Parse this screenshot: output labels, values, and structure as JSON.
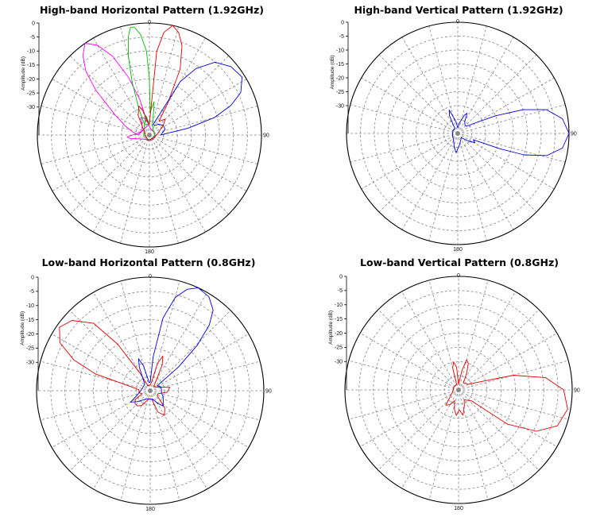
{
  "chart_data": [
    {
      "type": "polar",
      "title": "High-band Horizontal Pattern (1.92GHz)",
      "ylabel": "Amplitude (dB)",
      "radial_ticks": [
        "0",
        "-5",
        "-10",
        "-15",
        "-20",
        "-25",
        "-30"
      ],
      "angle_labels": {
        "top": "0",
        "right": "90",
        "bottom": "180"
      },
      "rlim": [
        -40,
        0
      ],
      "series": [
        {
          "color": "#ff00ff",
          "points": [
            [
              -90,
              -36
            ],
            [
              -80,
              -34
            ],
            [
              -70,
              -31
            ],
            [
              -60,
              -26
            ],
            [
              -50,
              -15
            ],
            [
              -45,
              -8
            ],
            [
              -40,
              -3
            ],
            [
              -35,
              0
            ],
            [
              -30,
              -3
            ],
            [
              -25,
              -9
            ],
            [
              -20,
              -18
            ],
            [
              -15,
              -27
            ],
            [
              -10,
              -35
            ],
            [
              0,
              -37
            ],
            [
              20,
              -38
            ],
            [
              40,
              -38
            ],
            [
              60,
              -38
            ],
            [
              80,
              -38
            ],
            [
              100,
              -38
            ],
            [
              140,
              -38
            ],
            [
              180,
              -38
            ],
            [
              220,
              -38
            ],
            [
              250,
              -36
            ],
            [
              260,
              -33
            ],
            [
              265,
              -32
            ],
            [
              270,
              -34
            ],
            [
              280,
              -36
            ],
            [
              300,
              -37
            ],
            [
              320,
              -36
            ],
            [
              335,
              -33
            ],
            [
              345,
              -34
            ],
            [
              355,
              -36
            ],
            [
              360,
              -36
            ]
          ]
        },
        {
          "color": "#00c000",
          "points": [
            [
              0,
              -36
            ],
            [
              -25,
              -36
            ],
            [
              -22,
              -30
            ],
            [
              -18,
              -20
            ],
            [
              -15,
              -11
            ],
            [
              -12,
              -4
            ],
            [
              -10,
              -1
            ],
            [
              -8,
              -1
            ],
            [
              -5,
              -4
            ],
            [
              -2,
              -10
            ],
            [
              0,
              -20
            ],
            [
              2,
              -32
            ],
            [
              5,
              -30
            ],
            [
              8,
              -28
            ],
            [
              10,
              -31
            ],
            [
              15,
              -36
            ],
            [
              25,
              -37
            ],
            [
              40,
              -38
            ],
            [
              60,
              -38
            ],
            [
              90,
              -38
            ],
            [
              180,
              -38
            ],
            [
              270,
              -38
            ],
            [
              335,
              -36
            ],
            [
              345,
              -34
            ],
            [
              350,
              -33
            ],
            [
              355,
              -35
            ],
            [
              360,
              -36
            ]
          ]
        },
        {
          "color": "#e00000",
          "points": [
            [
              0,
              -36
            ],
            [
              5,
              -10
            ],
            [
              8,
              -3
            ],
            [
              12,
              0
            ],
            [
              16,
              -2
            ],
            [
              20,
              -6
            ],
            [
              25,
              -14
            ],
            [
              30,
              -27
            ],
            [
              35,
              -34
            ],
            [
              45,
              -32
            ],
            [
              55,
              -34
            ],
            [
              80,
              -37
            ],
            [
              120,
              -38
            ],
            [
              200,
              -38
            ],
            [
              300,
              -38
            ],
            [
              330,
              -32
            ],
            [
              340,
              -29
            ],
            [
              345,
              -31
            ],
            [
              350,
              -34
            ],
            [
              355,
              -36
            ],
            [
              360,
              -36
            ]
          ]
        },
        {
          "color": "#0000e0",
          "points": [
            [
              20,
              -36
            ],
            [
              30,
              -18
            ],
            [
              35,
              -11
            ],
            [
              42,
              -5
            ],
            [
              50,
              -2
            ],
            [
              58,
              -1
            ],
            [
              65,
              -4
            ],
            [
              70,
              -9
            ],
            [
              75,
              -16
            ],
            [
              80,
              -26
            ],
            [
              85,
              -34
            ],
            [
              90,
              -36
            ],
            [
              70,
              -34
            ],
            [
              55,
              -34
            ],
            [
              40,
              -35
            ],
            [
              30,
              -36
            ]
          ]
        }
      ]
    },
    {
      "type": "polar",
      "title": "High-band Vertical Pattern (1.92GHz)",
      "ylabel": "Amplitude (dB)",
      "radial_ticks": [
        "0",
        "-5",
        "-10",
        "-15",
        "-20",
        "-25",
        "-30"
      ],
      "angle_labels": {
        "top": "0",
        "right": "90",
        "bottom": "180"
      },
      "rlim": [
        -40,
        0
      ],
      "series": [
        {
          "color": "#0000e0",
          "points": [
            [
              330,
              -38
            ],
            [
              335,
              -33
            ],
            [
              340,
              -31
            ],
            [
              345,
              -34
            ],
            [
              352,
              -36
            ],
            [
              0,
              -38
            ],
            [
              10,
              -36
            ],
            [
              20,
              -33
            ],
            [
              25,
              -32
            ],
            [
              30,
              -35
            ],
            [
              40,
              -36
            ],
            [
              50,
              -36
            ],
            [
              60,
              -32
            ],
            [
              65,
              -25
            ],
            [
              70,
              -15
            ],
            [
              75,
              -7
            ],
            [
              82,
              -2
            ],
            [
              90,
              0
            ],
            [
              98,
              -2
            ],
            [
              104,
              -7
            ],
            [
              108,
              -15
            ],
            [
              110,
              -24
            ],
            [
              112,
              -34
            ],
            [
              118,
              -33
            ],
            [
              125,
              -35
            ],
            [
              140,
              -38
            ],
            [
              170,
              -36
            ],
            [
              185,
              -33
            ],
            [
              195,
              -35
            ],
            [
              210,
              -37
            ],
            [
              250,
              -38
            ],
            [
              300,
              -38
            ],
            [
              330,
              -38
            ]
          ]
        }
      ]
    },
    {
      "type": "polar",
      "title": "Low-band Horizontal Pattern (0.8GHz)",
      "ylabel": "Amplitude (dB)",
      "radial_ticks": [
        "0",
        "-5",
        "-10",
        "-15",
        "-20",
        "-25",
        "-30"
      ],
      "angle_labels": {
        "top": "0",
        "right": "90",
        "bottom": "180"
      },
      "rlim": [
        -40,
        0
      ],
      "series": [
        {
          "color": "#e00000",
          "points": [
            [
              0,
              -38
            ],
            [
              -25,
              -38
            ],
            [
              -30,
              -33
            ],
            [
              -35,
              -20
            ],
            [
              -40,
              -9
            ],
            [
              -48,
              -3
            ],
            [
              -55,
              -1
            ],
            [
              -62,
              -4
            ],
            [
              -68,
              -11
            ],
            [
              -73,
              -20
            ],
            [
              -78,
              -33
            ],
            [
              -85,
              -36
            ],
            [
              -100,
              -36
            ],
            [
              -110,
              -37
            ],
            [
              -120,
              -34
            ],
            [
              -130,
              -33
            ],
            [
              -140,
              -33
            ],
            [
              -150,
              -34
            ],
            [
              -170,
              -37
            ],
            [
              -190,
              -37
            ],
            [
              -200,
              -32
            ],
            [
              -210,
              -30
            ],
            [
              -220,
              -32
            ],
            [
              -235,
              -37
            ],
            [
              -250,
              -37
            ],
            [
              -265,
              -34
            ],
            [
              -280,
              -33
            ],
            [
              -295,
              -37
            ],
            [
              -320,
              -38
            ],
            [
              -335,
              -30
            ],
            [
              -340,
              -27
            ],
            [
              -345,
              -30
            ],
            [
              -352,
              -37
            ],
            [
              -360,
              -38
            ]
          ]
        },
        {
          "color": "#0000e0",
          "points": [
            [
              0,
              -37
            ],
            [
              5,
              -28
            ],
            [
              10,
              -14
            ],
            [
              15,
              -6
            ],
            [
              20,
              -2
            ],
            [
              25,
              0
            ],
            [
              32,
              -1
            ],
            [
              38,
              -4
            ],
            [
              42,
              -9
            ],
            [
              46,
              -17
            ],
            [
              50,
              -27
            ],
            [
              55,
              -37
            ],
            [
              70,
              -36
            ],
            [
              85,
              -36
            ],
            [
              100,
              -36
            ],
            [
              115,
              -35
            ],
            [
              130,
              -34
            ],
            [
              140,
              -33
            ],
            [
              150,
              -35
            ],
            [
              165,
              -37
            ],
            [
              200,
              -37
            ],
            [
              230,
              -34
            ],
            [
              240,
              -32
            ],
            [
              250,
              -35
            ],
            [
              280,
              -37
            ],
            [
              320,
              -37
            ],
            [
              335,
              -31
            ],
            [
              340,
              -28
            ],
            [
              345,
              -31
            ],
            [
              352,
              -37
            ],
            [
              360,
              -37
            ]
          ]
        }
      ]
    },
    {
      "type": "polar",
      "title": "Low-band Vertical Pattern (0.8GHz)",
      "ylabel": "Amplitude (dB)",
      "radial_ticks": [
        "0",
        "-5",
        "-10",
        "-15",
        "-20",
        "-25",
        "-30"
      ],
      "angle_labels": {
        "top": "0",
        "right": "90",
        "bottom": "180"
      },
      "rlim": [
        -40,
        0
      ],
      "series": [
        {
          "color": "#e00000",
          "points": [
            [
              340,
              -38
            ],
            [
              345,
              -32
            ],
            [
              350,
              -30
            ],
            [
              355,
              -32
            ],
            [
              0,
              -38
            ],
            [
              10,
              -33
            ],
            [
              15,
              -29
            ],
            [
              20,
              -30
            ],
            [
              25,
              -33
            ],
            [
              35,
              -37
            ],
            [
              60,
              -36
            ],
            [
              68,
              -33
            ],
            [
              75,
              -20
            ],
            [
              82,
              -9
            ],
            [
              90,
              -3
            ],
            [
              100,
              -1
            ],
            [
              110,
              -3
            ],
            [
              118,
              -9
            ],
            [
              125,
              -19
            ],
            [
              130,
              -34
            ],
            [
              150,
              -36
            ],
            [
              160,
              -34
            ],
            [
              170,
              -31
            ],
            [
              178,
              -33
            ],
            [
              185,
              -31
            ],
            [
              192,
              -33
            ],
            [
              200,
              -36
            ],
            [
              210,
              -34
            ],
            [
              220,
              -33
            ],
            [
              230,
              -36
            ],
            [
              260,
              -38
            ],
            [
              300,
              -38
            ],
            [
              340,
              -38
            ]
          ]
        }
      ]
    }
  ]
}
